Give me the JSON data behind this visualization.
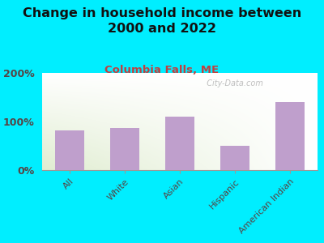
{
  "title": "Change in household income between\n2000 and 2022",
  "subtitle": "Columbia Falls, ME",
  "categories": [
    "All",
    "White",
    "Asian",
    "Hispanic",
    "American Indian"
  ],
  "values": [
    82,
    87,
    110,
    50,
    140
  ],
  "bar_color": "#bf9fcc",
  "title_fontsize": 11.5,
  "subtitle_fontsize": 9.5,
  "subtitle_color": "#c04040",
  "tick_label_color": "#554444",
  "background_outer": "#00eeff",
  "ylim": [
    0,
    200
  ],
  "yticks": [
    0,
    100,
    200
  ],
  "ytick_labels": [
    "0%",
    "100%",
    "200%"
  ],
  "watermark": "  City-Data.com"
}
